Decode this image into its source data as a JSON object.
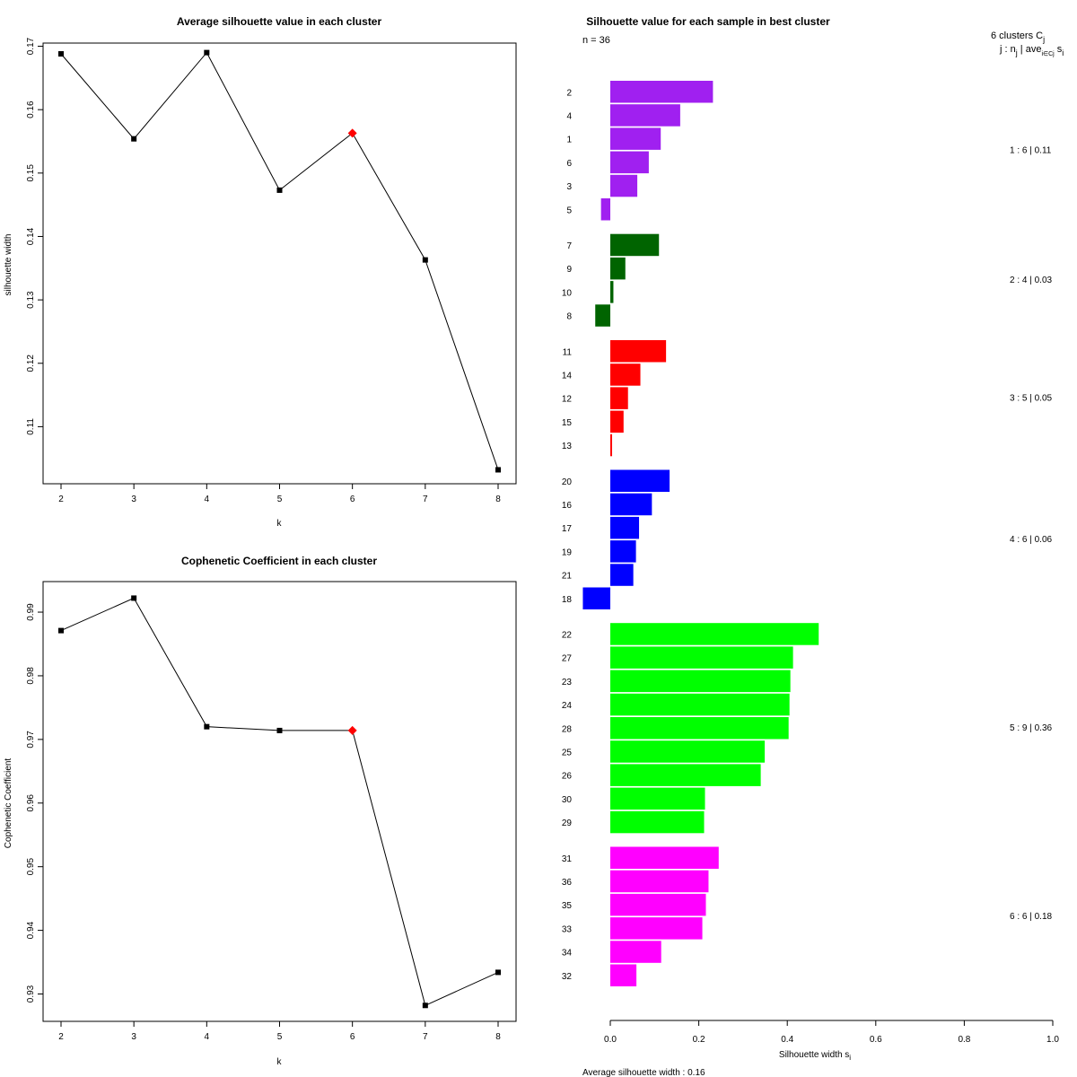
{
  "chart_data": [
    {
      "type": "line",
      "title": "Average silhouette value in each cluster",
      "xlabel": "k",
      "ylabel": "silhouette width",
      "x": [
        2,
        3,
        4,
        5,
        6,
        7,
        8
      ],
      "values": [
        0.1688,
        0.1554,
        0.169,
        0.1473,
        0.1563,
        0.1363,
        0.1032
      ],
      "highlight_x": 6,
      "highlight_color": "#ff0000",
      "xticks": [
        "2",
        "3",
        "4",
        "5",
        "6",
        "7",
        "8"
      ],
      "yticks": [
        "0.11",
        "0.12",
        "0.13",
        "0.14",
        "0.15",
        "0.16",
        "0.17"
      ],
      "ylim": [
        0.101,
        0.1705
      ]
    },
    {
      "type": "line",
      "title": "Cophenetic Coefficient in each cluster",
      "xlabel": "k",
      "ylabel": "Cophenetic Coefficient",
      "x": [
        2,
        3,
        4,
        5,
        6,
        7,
        8
      ],
      "values": [
        0.9871,
        0.9922,
        0.972,
        0.9714,
        0.9714,
        0.9282,
        0.9334
      ],
      "highlight_x": 6,
      "highlight_color": "#ff0000",
      "xticks": [
        "2",
        "3",
        "4",
        "5",
        "6",
        "7",
        "8"
      ],
      "yticks": [
        "0.93",
        "0.94",
        "0.95",
        "0.96",
        "0.97",
        "0.98",
        "0.99"
      ],
      "ylim": [
        0.9257,
        0.9948
      ]
    },
    {
      "type": "bar",
      "orientation": "horizontal",
      "title": "Silhouette value for each sample in best cluster",
      "n_label": "n = 36",
      "header_line1": "6  clusters  C",
      "header_sub1": "j",
      "header_line2": "j :  n",
      "header_sub2": "j",
      "header_line2b": " | ave",
      "header_sub2b": "i∈Cj",
      "header_line2c": " s",
      "header_sub2c": "i",
      "xlabel": "Silhouette width s",
      "xlabel_sub": "i",
      "average_label": "Average silhouette width :  0.16",
      "xticks": [
        "0.0",
        "0.2",
        "0.4",
        "0.6",
        "0.8",
        "1.0"
      ],
      "xlim": [
        0,
        1
      ],
      "clusters": [
        {
          "color": "#a020f0",
          "summary": "1 :  6  |  0.11",
          "samples": [
            {
              "id": "2",
              "value": 0.232
            },
            {
              "id": "4",
              "value": 0.158
            },
            {
              "id": "1",
              "value": 0.114
            },
            {
              "id": "6",
              "value": 0.087
            },
            {
              "id": "3",
              "value": 0.061
            },
            {
              "id": "5",
              "value": -0.021
            }
          ]
        },
        {
          "color": "#006400",
          "summary": "2 :  4  |  0.03",
          "samples": [
            {
              "id": "7",
              "value": 0.11
            },
            {
              "id": "9",
              "value": 0.034
            },
            {
              "id": "10",
              "value": 0.007
            },
            {
              "id": "8",
              "value": -0.034
            }
          ]
        },
        {
          "color": "#ff0000",
          "summary": "3 :  5  |  0.05",
          "samples": [
            {
              "id": "11",
              "value": 0.126
            },
            {
              "id": "14",
              "value": 0.068
            },
            {
              "id": "12",
              "value": 0.04
            },
            {
              "id": "15",
              "value": 0.03
            },
            {
              "id": "13",
              "value": 0.004
            }
          ]
        },
        {
          "color": "#0000ff",
          "summary": "4 :  6  |  0.06",
          "samples": [
            {
              "id": "20",
              "value": 0.134
            },
            {
              "id": "16",
              "value": 0.094
            },
            {
              "id": "17",
              "value": 0.065
            },
            {
              "id": "19",
              "value": 0.058
            },
            {
              "id": "21",
              "value": 0.052
            },
            {
              "id": "18",
              "value": -0.062
            }
          ]
        },
        {
          "color": "#00ff00",
          "summary": "5 :  9  |  0.36",
          "samples": [
            {
              "id": "22",
              "value": 0.471
            },
            {
              "id": "27",
              "value": 0.413
            },
            {
              "id": "23",
              "value": 0.407
            },
            {
              "id": "24",
              "value": 0.405
            },
            {
              "id": "28",
              "value": 0.403
            },
            {
              "id": "25",
              "value": 0.349
            },
            {
              "id": "26",
              "value": 0.34
            },
            {
              "id": "30",
              "value": 0.214
            },
            {
              "id": "29",
              "value": 0.212
            }
          ]
        },
        {
          "color": "#ff00ff",
          "summary": "6 :  6  |  0.18",
          "samples": [
            {
              "id": "31",
              "value": 0.245
            },
            {
              "id": "36",
              "value": 0.222
            },
            {
              "id": "35",
              "value": 0.216
            },
            {
              "id": "33",
              "value": 0.208
            },
            {
              "id": "34",
              "value": 0.115
            },
            {
              "id": "32",
              "value": 0.059
            }
          ]
        }
      ]
    }
  ]
}
